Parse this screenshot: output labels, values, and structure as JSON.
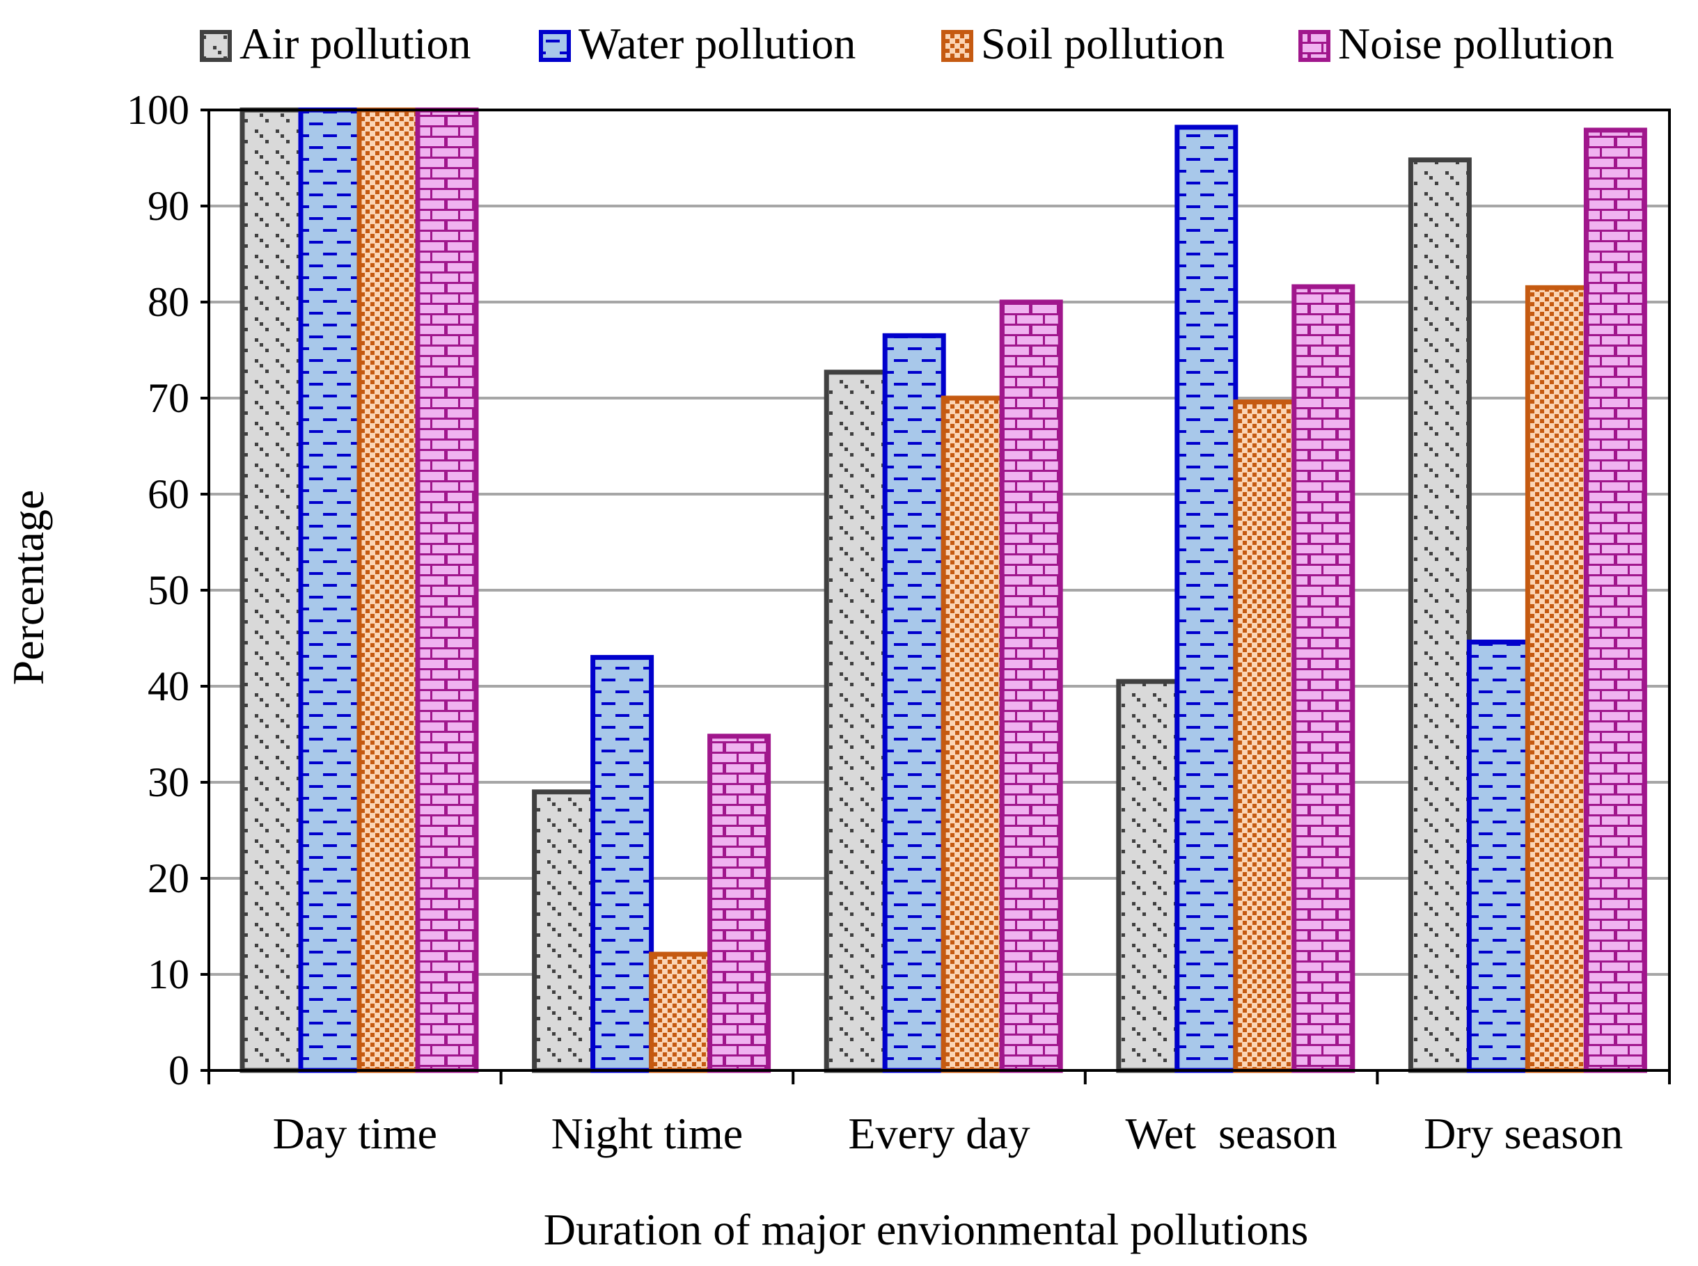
{
  "chart_data": {
    "type": "bar",
    "title": "",
    "xlabel": "Duration of major envionmental pollutions",
    "ylabel": "Percentage",
    "ylim": [
      0,
      100
    ],
    "yticks": [
      0,
      10,
      20,
      30,
      40,
      50,
      60,
      70,
      80,
      90,
      100
    ],
    "grid": true,
    "legend_position": "top",
    "categories": [
      "Day time",
      "Night time",
      "Every day",
      "Wet  season",
      "Dry season"
    ],
    "series": [
      {
        "name": "Air pollution",
        "values": [
          100,
          29,
          72.7,
          40.5,
          94.8
        ],
        "color": "#404040",
        "fill": "#d9d9d9",
        "pattern": "dots"
      },
      {
        "name": "Water pollution",
        "values": [
          100,
          43,
          76.5,
          98.2,
          44.6
        ],
        "color": "#0000cc",
        "fill": "#a8c8ea",
        "pattern": "dashes"
      },
      {
        "name": "Soil pollution",
        "values": [
          100,
          12.1,
          70,
          69.6,
          81.5
        ],
        "color": "#c55a11",
        "fill": "#fbd5b5",
        "pattern": "checker"
      },
      {
        "name": "Noise pollution",
        "values": [
          100,
          34.8,
          80,
          81.6,
          97.9
        ],
        "color": "#a0168c",
        "fill": "#f0b3f0",
        "pattern": "bricks"
      }
    ]
  }
}
